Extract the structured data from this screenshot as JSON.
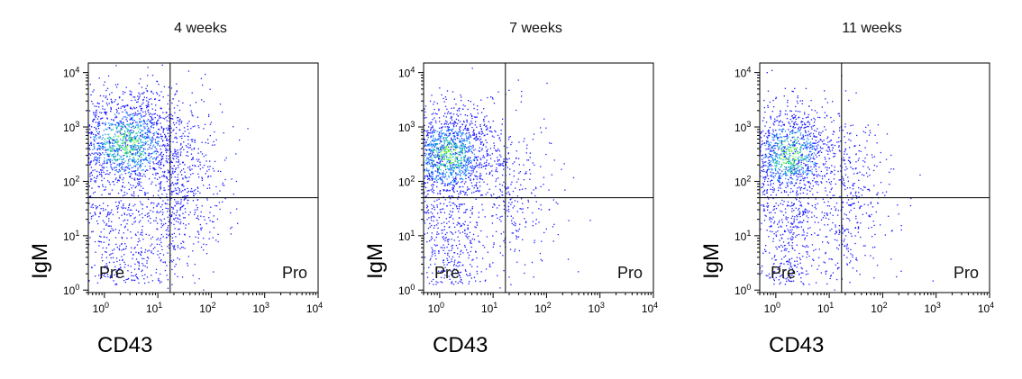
{
  "figure": {
    "panels": [
      {
        "title": "4 weeks",
        "ylabel": "IgM",
        "xlabel": "CD43",
        "gate_left": "Pre",
        "gate_right": "Pro"
      },
      {
        "title": "7 weeks",
        "ylabel": "IgM",
        "xlabel": "CD43",
        "gate_left": "Pre",
        "gate_right": "Pro"
      },
      {
        "title": "11 weeks",
        "ylabel": "IgM",
        "xlabel": "CD43",
        "gate_left": "Pre",
        "gate_right": "Pro"
      }
    ]
  },
  "colors": {
    "dot_sparse": "#1a1aff",
    "dot_medium": "#0f8fff",
    "dot_dense": "#18c890",
    "dot_peak": "#7cff3a",
    "frame": "#000000",
    "gate": "#000000"
  },
  "chart_data": [
    {
      "type": "scatter",
      "title": "4 weeks",
      "xlabel": "CD43",
      "ylabel": "IgM",
      "x_scale": "log",
      "y_scale": "log",
      "xlim": [
        0.5,
        10000
      ],
      "ylim": [
        0.9,
        15000
      ],
      "x_ticks": [
        "10^0",
        "10^1",
        "10^2",
        "10^3",
        "10^4"
      ],
      "y_ticks": [
        "10^0",
        "10^1",
        "10^2",
        "10^3",
        "10^4"
      ],
      "gate": {
        "x": 17,
        "y": 50
      },
      "quadrant_labels": [
        "Pre",
        "Pro"
      ],
      "density": {
        "center_x": 2.5,
        "center_y": 500,
        "x_log_spread": 0.55,
        "y_log_spread": 0.5,
        "events": 2600,
        "right_tail_fraction": 0.18,
        "low_igm_fraction": 0.18,
        "seed": 11
      }
    },
    {
      "type": "scatter",
      "title": "7 weeks",
      "xlabel": "CD43",
      "ylabel": "IgM",
      "x_scale": "log",
      "y_scale": "log",
      "xlim": [
        0.5,
        10000
      ],
      "ylim": [
        0.9,
        15000
      ],
      "x_ticks": [
        "10^0",
        "10^1",
        "10^2",
        "10^3",
        "10^4"
      ],
      "y_ticks": [
        "10^0",
        "10^1",
        "10^2",
        "10^3",
        "10^4"
      ],
      "gate": {
        "x": 17,
        "y": 50
      },
      "quadrant_labels": [
        "Pre",
        "Pro"
      ],
      "density": {
        "center_x": 1.5,
        "center_y": 300,
        "x_log_spread": 0.45,
        "y_log_spread": 0.45,
        "events": 2200,
        "right_tail_fraction": 0.1,
        "low_igm_fraction": 0.18,
        "seed": 23
      }
    },
    {
      "type": "scatter",
      "title": "11 weeks",
      "xlabel": "CD43",
      "ylabel": "IgM",
      "x_scale": "log",
      "y_scale": "log",
      "xlim": [
        0.5,
        10000
      ],
      "ylim": [
        0.9,
        15000
      ],
      "x_ticks": [
        "10^0",
        "10^1",
        "10^2",
        "10^3",
        "10^4"
      ],
      "y_ticks": [
        "10^0",
        "10^1",
        "10^2",
        "10^3",
        "10^4"
      ],
      "gate": {
        "x": 17,
        "y": 50
      },
      "quadrant_labels": [
        "Pre",
        "Pro"
      ],
      "density": {
        "center_x": 1.8,
        "center_y": 300,
        "x_log_spread": 0.45,
        "y_log_spread": 0.45,
        "events": 2000,
        "right_tail_fraction": 0.15,
        "low_igm_fraction": 0.2,
        "seed": 37
      }
    }
  ]
}
